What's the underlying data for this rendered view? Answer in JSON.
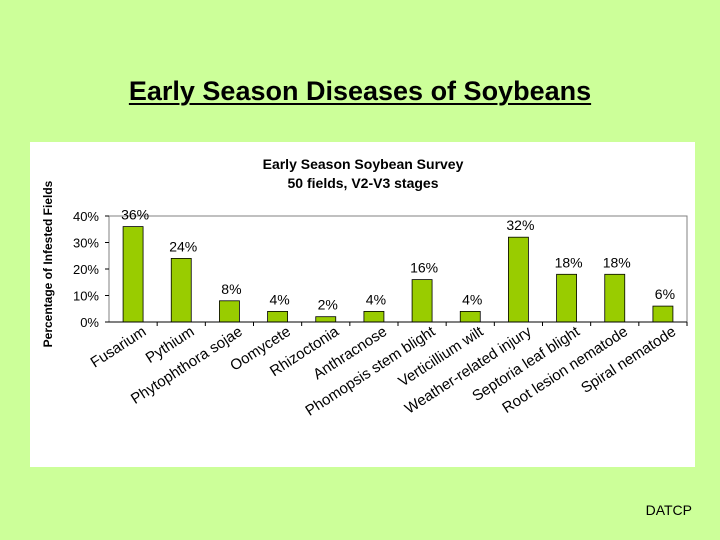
{
  "slide": {
    "title": "Early Season Diseases of Soybeans",
    "footer": "DATCP"
  },
  "colors": {
    "background": "#ccff99",
    "bar_fill": "#99cc00",
    "bar_stroke": "#000000"
  },
  "chart_data": {
    "type": "bar",
    "title": "Early Season Soybean Survey",
    "subtitle": "50 fields, V2-V3 stages",
    "xlabel": "",
    "ylabel": "Percentage of Infested Fields",
    "ylim": [
      0,
      40
    ],
    "yticks": [
      "0%",
      "10%",
      "20%",
      "30%",
      "40%"
    ],
    "grid": false,
    "legend": "none",
    "categories": [
      "Fusarium",
      "Pythium",
      "Phytophthora sojae",
      "Oomycete",
      "Rhizoctonia",
      "Anthracnose",
      "Phomopsis stem blight",
      "Verticillium wilt",
      "Weather-related injury",
      "Septoria leaf blight",
      "Root lesion nematode",
      "Spiral nematode"
    ],
    "values": [
      36,
      24,
      8,
      4,
      2,
      4,
      16,
      4,
      32,
      18,
      18,
      6
    ],
    "data_labels": [
      "36%",
      "24%",
      "8%",
      "4%",
      "2%",
      "4%",
      "16%",
      "4%",
      "32%",
      "18%",
      "18%",
      "6%"
    ]
  }
}
